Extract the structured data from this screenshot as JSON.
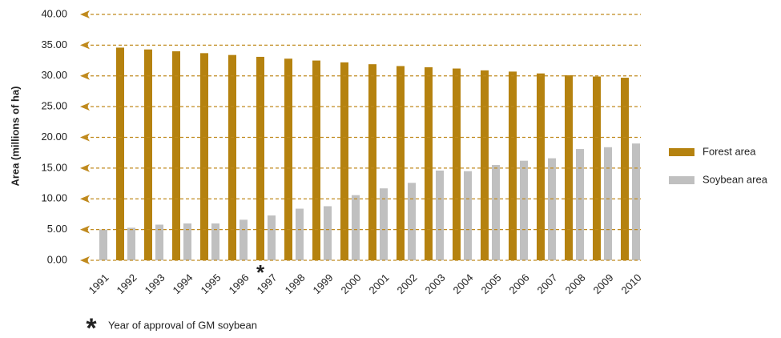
{
  "chart_data": {
    "type": "bar",
    "y_label": "Area (millions of ha)",
    "categories": [
      "1991",
      "1992",
      "1993",
      "1994",
      "1995",
      "1996",
      "1997",
      "1998",
      "1999",
      "2000",
      "2001",
      "2002",
      "2003",
      "2004",
      "2005",
      "2006",
      "2007",
      "2008",
      "2009",
      "2010"
    ],
    "series": [
      {
        "name": "Soybean area",
        "color": "#c0c0c0",
        "values": [
          5.0,
          5.3,
          5.8,
          6.0,
          6.0,
          6.6,
          7.3,
          8.4,
          8.8,
          10.6,
          11.7,
          12.6,
          14.6,
          14.5,
          15.5,
          16.2,
          16.6,
          18.1,
          18.4,
          19.0
        ]
      },
      {
        "name": "Forest area",
        "color": "#b5820f",
        "values": [
          34.6,
          34.3,
          34.0,
          33.7,
          33.4,
          33.1,
          32.8,
          32.5,
          32.2,
          31.9,
          31.6,
          31.4,
          31.2,
          30.9,
          30.7,
          30.4,
          30.1,
          29.9,
          29.7,
          null
        ]
      }
    ],
    "legend_order": [
      "Forest area",
      "Soybean area"
    ],
    "ylim": [
      0,
      40
    ],
    "yticks": [
      {
        "value": 0,
        "label": "0.00"
      },
      {
        "value": 5,
        "label": "5.00"
      },
      {
        "value": 10,
        "label": "10.00"
      },
      {
        "value": 15,
        "label": "15.00"
      },
      {
        "value": 20,
        "label": "20.00"
      },
      {
        "value": 25,
        "label": "25.00"
      },
      {
        "value": 30,
        "label": "30.00"
      },
      {
        "value": 35,
        "label": "35.00"
      },
      {
        "value": 40,
        "label": "40.00"
      }
    ],
    "grid": true,
    "grid_color": "#c08a1e",
    "annotation": {
      "symbol": "*",
      "at": "1996",
      "text": "Year of approval of GM soybean"
    }
  }
}
